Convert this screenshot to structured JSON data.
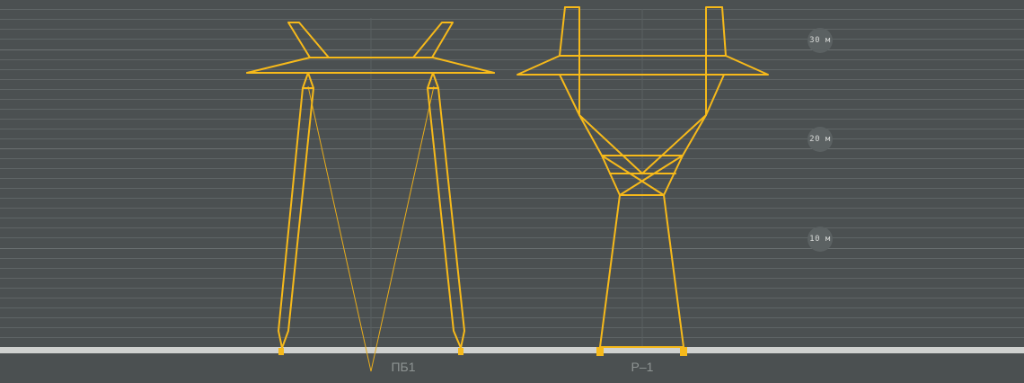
{
  "scale": {
    "marks": [
      {
        "label": "30 м",
        "value": 30
      },
      {
        "label": "20 м",
        "value": 20
      },
      {
        "label": "10 м",
        "value": 10
      }
    ]
  },
  "towers": [
    {
      "id": "pb1",
      "label": "ПБ1"
    },
    {
      "id": "r1",
      "label": "Р–1"
    }
  ],
  "colors": {
    "background": "#4b5051",
    "tower": "#f6b91a",
    "ground": "#cfd1cf"
  }
}
